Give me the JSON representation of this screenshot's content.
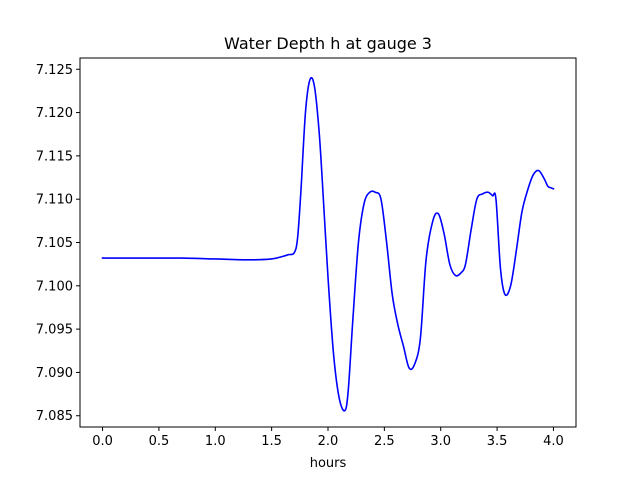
{
  "chart_data": {
    "type": "line",
    "title": "Water Depth h at gauge 3",
    "xlabel": "hours",
    "ylabel": "",
    "xlim": [
      -0.2,
      4.2
    ],
    "ylim": [
      7.0837,
      7.1263
    ],
    "grid": false,
    "legend": "none",
    "x_ticks": [
      0.0,
      0.5,
      1.0,
      1.5,
      2.0,
      2.5,
      3.0,
      3.5,
      4.0
    ],
    "x_tick_labels": [
      "0.0",
      "0.5",
      "1.0",
      "1.5",
      "2.0",
      "2.5",
      "3.0",
      "3.5",
      "4.0"
    ],
    "y_ticks": [
      7.085,
      7.09,
      7.095,
      7.1,
      7.105,
      7.11,
      7.115,
      7.12,
      7.125
    ],
    "y_tick_labels": [
      "7.085",
      "7.090",
      "7.095",
      "7.100",
      "7.105",
      "7.110",
      "7.115",
      "7.120",
      "7.125"
    ],
    "series": [
      {
        "color": "#0000ff",
        "x": [
          0.0,
          0.3,
          0.7,
          1.0,
          1.3,
          1.5,
          1.6,
          1.65,
          1.7,
          1.73,
          1.76,
          1.8,
          1.84,
          1.88,
          1.92,
          1.95,
          2.0,
          2.05,
          2.1,
          2.15,
          2.18,
          2.22,
          2.27,
          2.32,
          2.37,
          2.42,
          2.47,
          2.52,
          2.57,
          2.62,
          2.67,
          2.72,
          2.77,
          2.82,
          2.87,
          2.93,
          2.98,
          3.03,
          3.08,
          3.13,
          3.18,
          3.22,
          3.27,
          3.32,
          3.37,
          3.42,
          3.46,
          3.49,
          3.53,
          3.57,
          3.62,
          3.67,
          3.72,
          3.77,
          3.82,
          3.87,
          3.92,
          3.95,
          3.98,
          4.0
        ],
        "y": [
          7.1032,
          7.1032,
          7.1032,
          7.1031,
          7.103,
          7.1031,
          7.1034,
          7.1036,
          7.1038,
          7.1055,
          7.111,
          7.12,
          7.1238,
          7.123,
          7.118,
          7.112,
          7.101,
          7.092,
          7.087,
          7.0856,
          7.088,
          7.096,
          7.105,
          7.1095,
          7.1108,
          7.1108,
          7.11,
          7.105,
          7.099,
          7.0955,
          7.093,
          7.0905,
          7.091,
          7.094,
          7.103,
          7.1075,
          7.1083,
          7.106,
          7.1025,
          7.1012,
          7.1015,
          7.1025,
          7.1065,
          7.11,
          7.1106,
          7.1108,
          7.1104,
          7.11,
          7.102,
          7.099,
          7.1,
          7.104,
          7.1085,
          7.111,
          7.1128,
          7.1133,
          7.1123,
          7.1115,
          7.1113,
          7.1112
        ]
      }
    ]
  }
}
